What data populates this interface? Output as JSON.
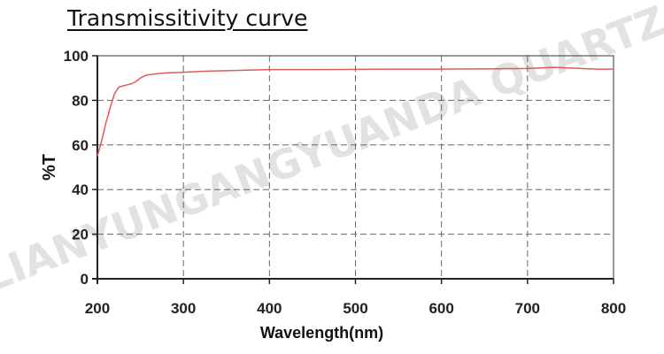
{
  "chart_data": {
    "type": "line",
    "title": "Transmissitivity curve",
    "xlabel": "Wavelength(nm)",
    "ylabel": "%T",
    "xlim": [
      200,
      800
    ],
    "ylim": [
      0,
      100
    ],
    "x_ticks": [
      200,
      300,
      400,
      500,
      600,
      700,
      800
    ],
    "y_ticks": [
      0,
      20,
      40,
      60,
      80,
      100
    ],
    "grid": true,
    "line_color": "#e05a5a",
    "watermark": "LIANYUNGANGYUANDA QUARTZ",
    "series": [
      {
        "x": [
          200,
          205,
          210,
          215,
          220,
          225,
          230,
          235,
          240,
          245,
          250,
          255,
          260,
          270,
          280,
          300,
          320,
          350,
          380,
          400,
          450,
          500,
          550,
          600,
          650,
          700,
          730,
          750,
          780,
          800
        ],
        "y": [
          55,
          62,
          70,
          77,
          83,
          86,
          86.5,
          87,
          87.5,
          88.5,
          90,
          91,
          91.5,
          92,
          92.3,
          92.6,
          93,
          93.3,
          93.6,
          93.8,
          93.8,
          93.9,
          94,
          94,
          94.1,
          94.3,
          94.8,
          94.5,
          94,
          94
        ]
      }
    ]
  }
}
